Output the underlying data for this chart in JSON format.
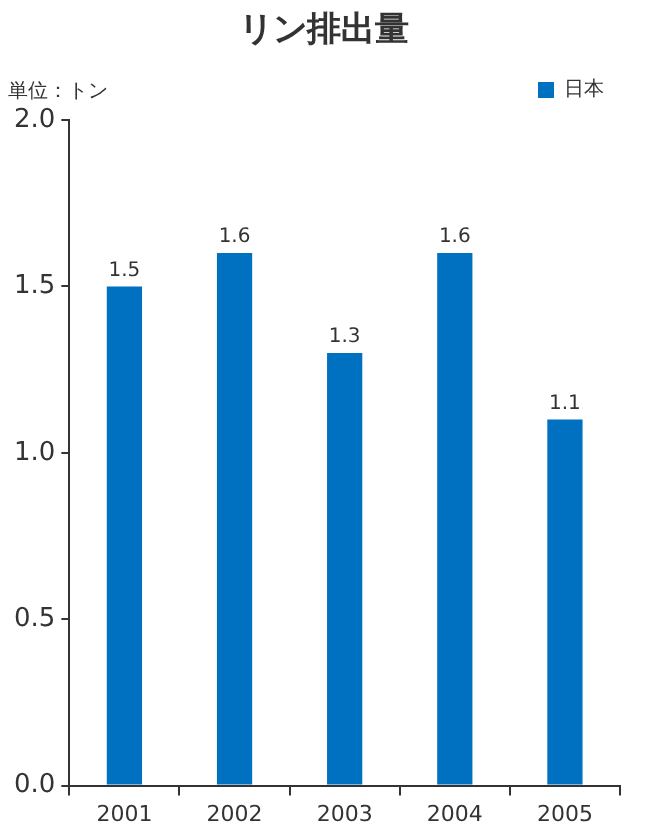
{
  "chart_data": {
    "type": "bar",
    "title": "リン排出量",
    "ylabel": "単位：トン",
    "categories": [
      "2001",
      "2002",
      "2003",
      "2004",
      "2005"
    ],
    "series": [
      {
        "name": "日本",
        "color": "#0070c0",
        "values": [
          1.5,
          1.6,
          1.3,
          1.6,
          1.1
        ]
      }
    ],
    "ylim": [
      0,
      2
    ],
    "yticks": [
      {
        "value": 0,
        "label": "0.0"
      },
      {
        "value": 0.5,
        "label": "0.5"
      },
      {
        "value": 1,
        "label": "1.0"
      },
      {
        "value": 1.5,
        "label": "1.5"
      },
      {
        "value": 2,
        "label": "2.0"
      }
    ],
    "data_labels": true,
    "legend": "top right"
  }
}
